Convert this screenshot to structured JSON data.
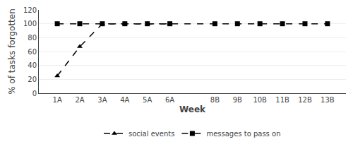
{
  "chart_data": {
    "type": "line",
    "categories": [
      "1A",
      "2A",
      "3A",
      "4A",
      "5A",
      "6A",
      null,
      "8B",
      "9B",
      "10B",
      "11B",
      "12B",
      "13B"
    ],
    "series": [
      {
        "name": "social events",
        "color": "#000000",
        "marker": "triangle",
        "line_style": "dashed",
        "values": [
          25,
          67,
          100,
          100,
          100,
          100,
          null,
          null,
          null,
          null,
          null,
          null,
          null
        ]
      },
      {
        "name": "messages to pass on",
        "color": "#000000",
        "marker": "square",
        "line_style": "dashed",
        "values": [
          100,
          100,
          100,
          100,
          100,
          100,
          null,
          100,
          100,
          100,
          100,
          100,
          100
        ]
      }
    ],
    "xlabel": "Week",
    "ylabel": "% of tasks forgotten",
    "ylim": [
      0,
      120
    ],
    "yticks": [
      0,
      20,
      40,
      60,
      80,
      100,
      120
    ],
    "grid": true
  }
}
